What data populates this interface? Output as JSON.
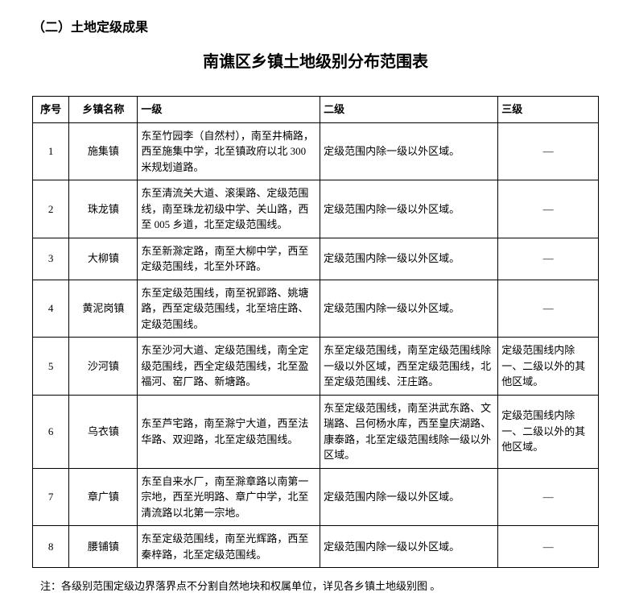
{
  "section_heading": "（二）土地定级成果",
  "title": "南谯区乡镇土地级别分布范围表",
  "table": {
    "columns": [
      "序号",
      "乡镇名称",
      "一级",
      "二级",
      "三级"
    ],
    "rows": [
      {
        "seq": "1",
        "name": "施集镇",
        "level1": "东至竹园李（自然村），南至井楠路，西至施集中学，北至镇政府以北 300 米规划道路。",
        "level2": "定级范围内除一级以外区域。",
        "level3": "—"
      },
      {
        "seq": "2",
        "name": "珠龙镇",
        "level1": "东至清流关大道、滚渠路、定级范围线，南至珠龙初级中学、关山路，西至 005 乡道，北至定级范围线。",
        "level2": "定级范围内除一级以外区域。",
        "level3": "—"
      },
      {
        "seq": "3",
        "name": "大柳镇",
        "level1": "东至新滁定路，南至大柳中学，西至定级范围线，北至外环路。",
        "level2": "定级范围内除一级以外区域。",
        "level3": "—"
      },
      {
        "seq": "4",
        "name": "黄泥岗镇",
        "level1": "东至定级范围线，南至祝郢路、姚塘路，西至定级范围线，北至培庄路、定级范围线。",
        "level2": "定级范围内除一级以外区域。",
        "level3": "—"
      },
      {
        "seq": "5",
        "name": "沙河镇",
        "level1": "东至沙河大道、定级范围线，南全定级范围线，西全定级范围线，北至盈福河、窑厂路、新塘路。",
        "level2": "东至定级范围线，南至定级范围线除一级以外区域，西至定级范围线，北至定级范围线、汪庄路。",
        "level3": "定级范围线内除一、二级以外的其他区域。"
      },
      {
        "seq": "6",
        "name": "乌衣镇",
        "level1": "东至芦宅路，南至滁宁大道，西至法华路、双迎路，北至定级范围线。",
        "level2": "东至定级范围线，南至洪武东路、文瑞路、吕何杨水库，西至皇庆湖路、康泰路，北至定级范围线除一级以外区域。",
        "level3": "定级范围线内除一、二级以外的其他区域。"
      },
      {
        "seq": "7",
        "name": "章广镇",
        "level1": "东至自来水厂，南至滁章路以南第一宗地，西至光明路、章广中学，北至清流路以北第一宗地。",
        "level2": "定级范围内除一级以外区域。",
        "level3": "—"
      },
      {
        "seq": "8",
        "name": "腰铺镇",
        "level1": "东至定级范围线，南至光辉路，西至秦梓路，北至定级范围线。",
        "level2": "定级范围内除一级以外区域。",
        "level3": "—"
      }
    ]
  },
  "footnote": "注：各级别范围定级边界落界点不分割自然地块和权属单位，详见各乡镇土地级别图 。",
  "colors": {
    "text": "#000000",
    "background": "#ffffff",
    "border": "#000000"
  }
}
